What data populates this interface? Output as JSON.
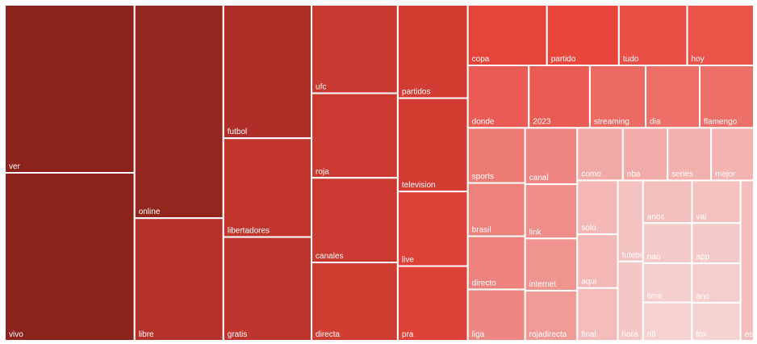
{
  "chart_data": {
    "type": "treemap",
    "title": "",
    "palette": {
      "dark": "#8b221c",
      "mid": "#e8453a",
      "light": "#f5d3d3"
    },
    "items": [
      {
        "label": "ver",
        "value": 1000
      },
      {
        "label": "vivo",
        "value": 1000
      },
      {
        "label": "online",
        "value": 870
      },
      {
        "label": "libre",
        "value": 500
      },
      {
        "label": "futbol",
        "value": 540
      },
      {
        "label": "libertadores",
        "value": 400
      },
      {
        "label": "gratis",
        "value": 420
      },
      {
        "label": "ufc",
        "value": 350
      },
      {
        "label": "roja",
        "value": 335
      },
      {
        "label": "canales",
        "value": 335
      },
      {
        "label": "directa",
        "value": 310
      },
      {
        "label": "partidos",
        "value": 300
      },
      {
        "label": "television",
        "value": 300
      },
      {
        "label": "live",
        "value": 240
      },
      {
        "label": "pra",
        "value": 240
      },
      {
        "label": "copa",
        "value": 220
      },
      {
        "label": "partido",
        "value": 200
      },
      {
        "label": "tudo",
        "value": 190
      },
      {
        "label": "hoy",
        "value": 185
      },
      {
        "label": "donde",
        "value": 175
      },
      {
        "label": "2023",
        "value": 175
      },
      {
        "label": "streaming",
        "value": 160
      },
      {
        "label": "dia",
        "value": 155
      },
      {
        "label": "flamengo",
        "value": 155
      },
      {
        "label": "sports",
        "value": 145
      },
      {
        "label": "brasil",
        "value": 140
      },
      {
        "label": "directo",
        "value": 140
      },
      {
        "label": "liga",
        "value": 135
      },
      {
        "label": "canal",
        "value": 135
      },
      {
        "label": "link",
        "value": 130
      },
      {
        "label": "internet",
        "value": 125
      },
      {
        "label": "rojadirecta",
        "value": 120
      },
      {
        "label": "como",
        "value": 110
      },
      {
        "label": "nba",
        "value": 108
      },
      {
        "label": "series",
        "value": 105
      },
      {
        "label": "mejor",
        "value": 103
      },
      {
        "label": "solo",
        "value": 100
      },
      {
        "label": "aqui",
        "value": 100
      },
      {
        "label": "final",
        "value": 98
      },
      {
        "label": "espn",
        "value": 97
      },
      {
        "label": "anos",
        "value": 96
      },
      {
        "label": "vai",
        "value": 95
      },
      {
        "label": "futebol",
        "value": 94
      },
      {
        "label": "hora",
        "value": 92
      },
      {
        "label": "nao",
        "value": 90
      },
      {
        "label": "app",
        "value": 90
      },
      {
        "label": "time",
        "value": 88
      },
      {
        "label": "ano",
        "value": 88
      },
      {
        "label": "nfl",
        "value": 86
      },
      {
        "label": "fox",
        "value": 85
      }
    ]
  }
}
